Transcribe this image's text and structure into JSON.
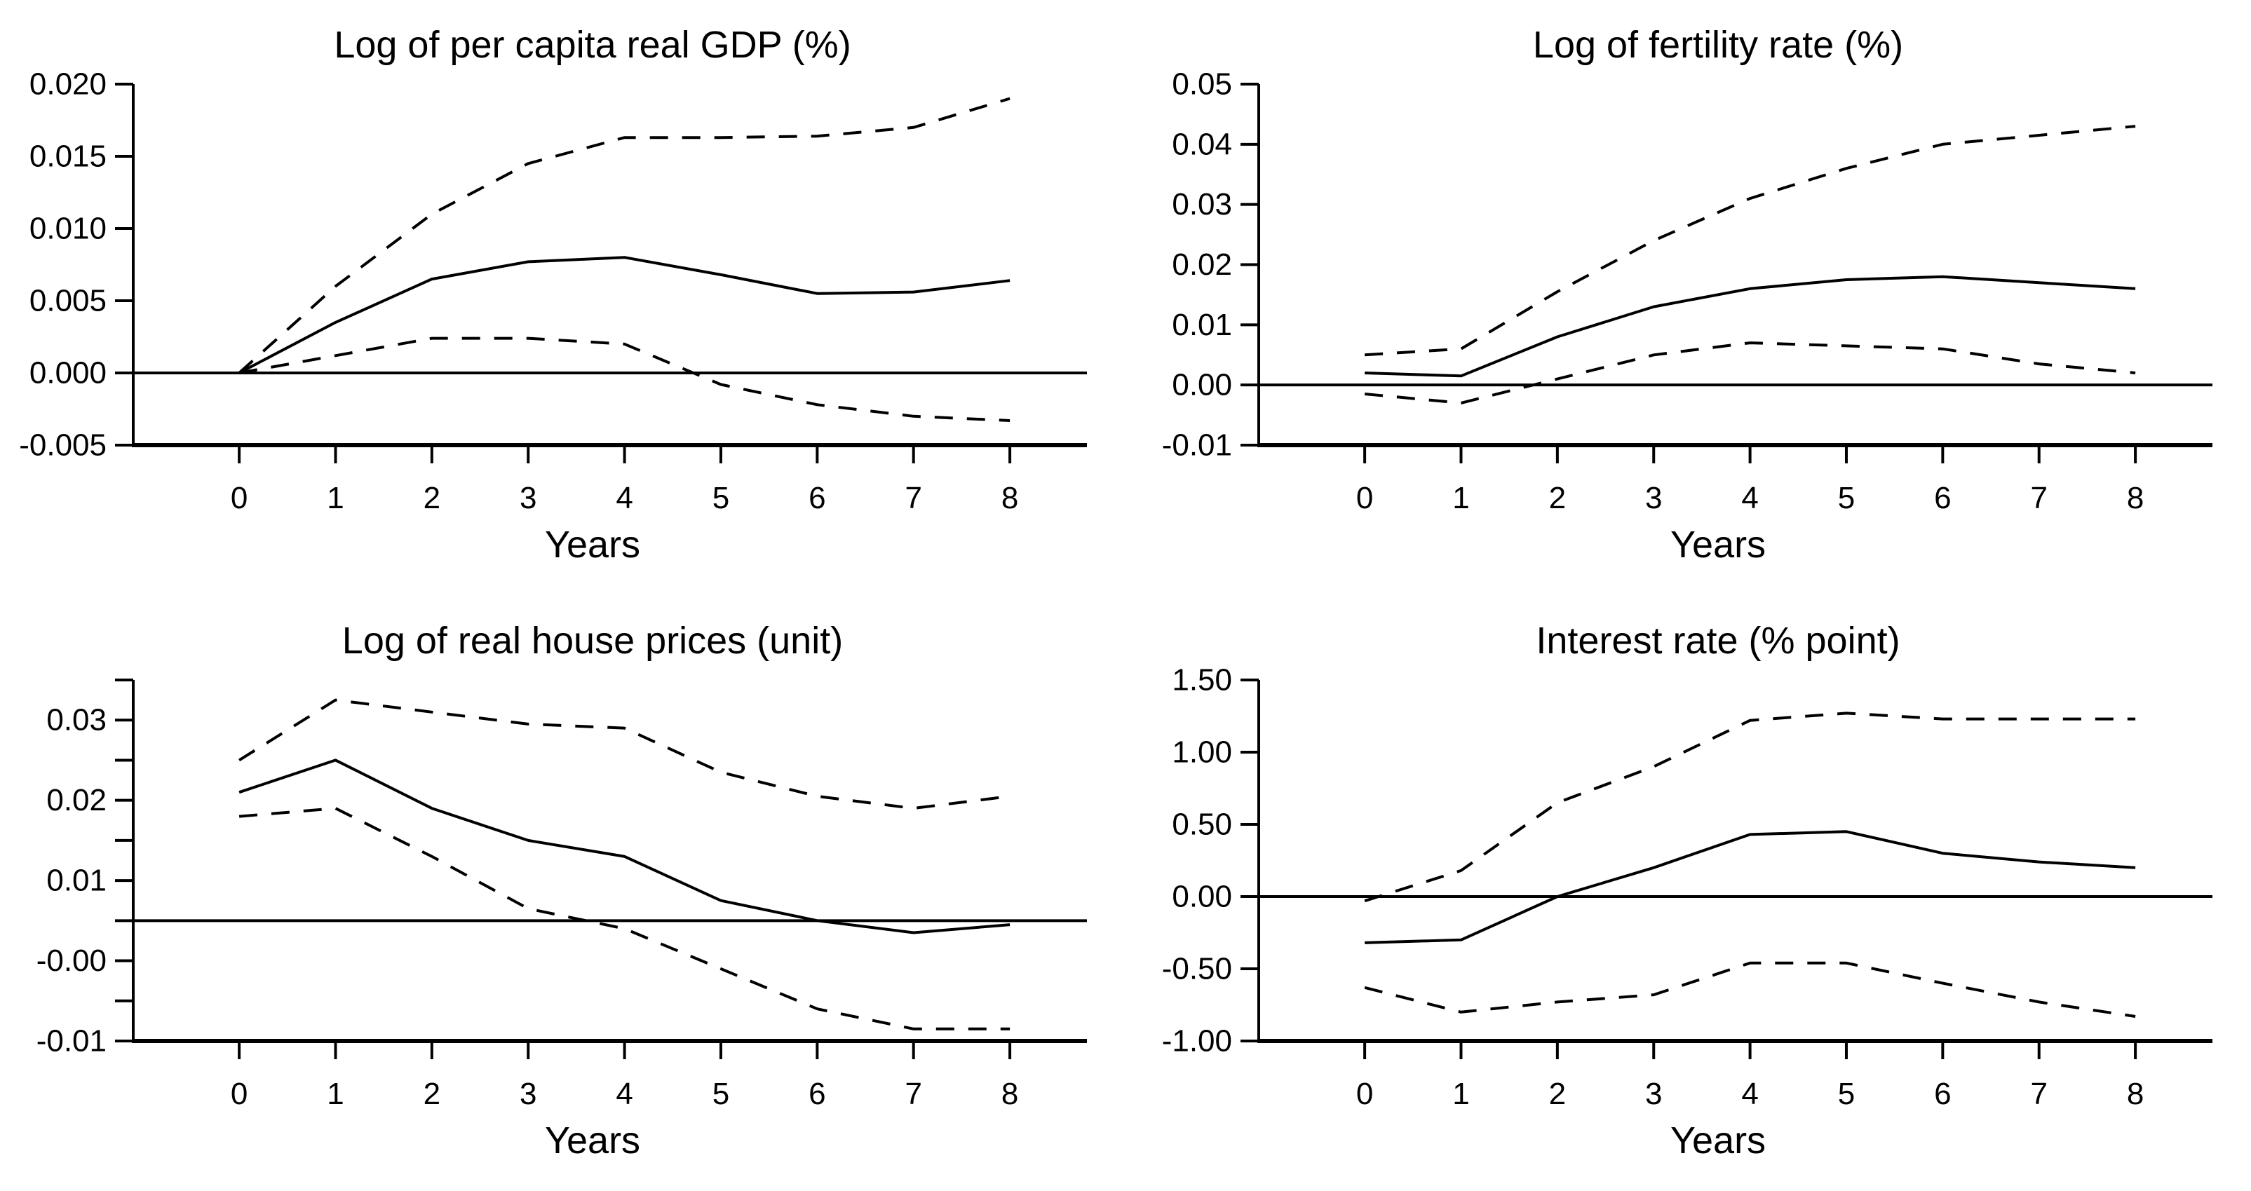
{
  "figure": {
    "layout": "2x2 grid of line charts",
    "background_color": "#ffffff",
    "ink_color": "#000000"
  },
  "chart_data": [
    {
      "id": "gdp",
      "type": "line",
      "title": "Log of per capita real GDP (%)",
      "xlabel": "Years",
      "x": [
        0,
        1,
        2,
        3,
        4,
        5,
        6,
        7,
        8
      ],
      "xtick_labels": [
        "0",
        "1",
        "2",
        "3",
        "4",
        "5",
        "6",
        "7",
        "8"
      ],
      "xlim": [
        -1.1,
        8.8
      ],
      "ylim": [
        -0.005,
        0.02
      ],
      "yticks": [
        {
          "value": 0.02,
          "label": "0.020"
        },
        {
          "value": 0.015,
          "label": "0.015"
        },
        {
          "value": 0.01,
          "label": "0.010"
        },
        {
          "value": 0.005,
          "label": "0.005"
        },
        {
          "value": 0.0,
          "label": "0.000"
        },
        {
          "value": -0.005,
          "label": "-0.005"
        }
      ],
      "yticks_minor": [],
      "reference_line_y": 0,
      "grid": false,
      "legend": "none",
      "series": [
        {
          "name": "point estimate",
          "style": "solid",
          "values": [
            0,
            0.0035,
            0.0065,
            0.0077,
            0.008,
            0.0068,
            0.0055,
            0.0056,
            0.0064
          ]
        },
        {
          "name": "upper band",
          "style": "dashed",
          "values": [
            0,
            0.006,
            0.011,
            0.0145,
            0.0163,
            0.0163,
            0.0164,
            0.017,
            0.019
          ]
        },
        {
          "name": "lower band",
          "style": "dashed",
          "values": [
            0,
            0.0012,
            0.0024,
            0.0024,
            0.002,
            -0.0008,
            -0.0022,
            -0.003,
            -0.0033
          ]
        }
      ]
    },
    {
      "id": "fertility",
      "type": "line",
      "title": "Log of fertility rate (%)",
      "xlabel": "Years",
      "x": [
        0,
        1,
        2,
        3,
        4,
        5,
        6,
        7,
        8
      ],
      "xtick_labels": [
        "0",
        "1",
        "2",
        "3",
        "4",
        "5",
        "6",
        "7",
        "8"
      ],
      "xlim": [
        -1.1,
        8.8
      ],
      "ylim": [
        -0.01,
        0.05
      ],
      "yticks": [
        {
          "value": 0.05,
          "label": "0.05"
        },
        {
          "value": 0.04,
          "label": "0.04"
        },
        {
          "value": 0.03,
          "label": "0.03"
        },
        {
          "value": 0.02,
          "label": "0.02"
        },
        {
          "value": 0.01,
          "label": "0.01"
        },
        {
          "value": 0.0,
          "label": "0.00"
        },
        {
          "value": -0.01,
          "label": "-0.01"
        }
      ],
      "yticks_minor": [],
      "reference_line_y": 0,
      "grid": false,
      "legend": "none",
      "series": [
        {
          "name": "point estimate",
          "style": "solid",
          "values": [
            0.002,
            0.0015,
            0.008,
            0.013,
            0.016,
            0.0175,
            0.018,
            0.017,
            0.016
          ]
        },
        {
          "name": "upper band",
          "style": "dashed",
          "values": [
            0.005,
            0.006,
            0.0155,
            0.024,
            0.031,
            0.036,
            0.04,
            0.0415,
            0.043
          ]
        },
        {
          "name": "lower band",
          "style": "dashed",
          "values": [
            -0.0015,
            -0.003,
            0.001,
            0.005,
            0.007,
            0.0065,
            0.006,
            0.0035,
            0.002
          ]
        }
      ]
    },
    {
      "id": "house-prices",
      "type": "line",
      "title": "Log of real house prices (unit)",
      "xlabel": "Years",
      "x": [
        0,
        1,
        2,
        3,
        4,
        5,
        6,
        7,
        8
      ],
      "xtick_labels": [
        "0",
        "1",
        "2",
        "3",
        "4",
        "5",
        "6",
        "7",
        "8"
      ],
      "xlim": [
        -1.1,
        8.8
      ],
      "ylim": [
        -0.01,
        0.035
      ],
      "yticks": [
        {
          "value": 0.03,
          "label": "0.03"
        },
        {
          "value": 0.02,
          "label": "0.02"
        },
        {
          "value": 0.01,
          "label": "0.01"
        },
        {
          "value": 0.0,
          "label": "-0.00"
        },
        {
          "value": -0.01,
          "label": "-0.01"
        }
      ],
      "yticks_minor": [
        0.035,
        0.025,
        0.015,
        0.005,
        -0.005
      ],
      "reference_line_y": 0.005,
      "grid": false,
      "legend": "none",
      "series": [
        {
          "name": "point estimate",
          "style": "solid",
          "values": [
            0.021,
            0.025,
            0.019,
            0.015,
            0.013,
            0.0075,
            0.005,
            0.0035,
            0.0045
          ]
        },
        {
          "name": "upper band",
          "style": "dashed",
          "values": [
            0.025,
            0.0325,
            0.031,
            0.0295,
            0.029,
            0.0235,
            0.0205,
            0.019,
            0.0205
          ]
        },
        {
          "name": "lower band",
          "style": "dashed",
          "values": [
            0.018,
            0.019,
            0.013,
            0.0065,
            0.004,
            -0.001,
            -0.006,
            -0.0085,
            -0.0085
          ]
        }
      ]
    },
    {
      "id": "interest-rate",
      "type": "line",
      "title": "Interest rate (% point)",
      "xlabel": "Years",
      "x": [
        0,
        1,
        2,
        3,
        4,
        5,
        6,
        7,
        8
      ],
      "xtick_labels": [
        "0",
        "1",
        "2",
        "3",
        "4",
        "5",
        "6",
        "7",
        "8"
      ],
      "xlim": [
        -1.1,
        8.8
      ],
      "ylim": [
        -1.0,
        1.5
      ],
      "yticks": [
        {
          "value": 1.5,
          "label": "1.50"
        },
        {
          "value": 1.0,
          "label": "1.00"
        },
        {
          "value": 0.5,
          "label": "0.50"
        },
        {
          "value": 0.0,
          "label": "0.00"
        },
        {
          "value": -0.5,
          "label": "-0.50"
        },
        {
          "value": -1.0,
          "label": "-1.00"
        }
      ],
      "yticks_minor": [],
      "reference_line_y": 0,
      "grid": false,
      "legend": "none",
      "series": [
        {
          "name": "point estimate",
          "style": "solid",
          "values": [
            -0.32,
            -0.3,
            0.0,
            0.2,
            0.43,
            0.45,
            0.3,
            0.24,
            0.2
          ]
        },
        {
          "name": "upper band",
          "style": "dashed",
          "values": [
            -0.03,
            0.18,
            0.65,
            0.9,
            1.22,
            1.27,
            1.23,
            1.23,
            1.23
          ]
        },
        {
          "name": "lower band",
          "style": "dashed",
          "values": [
            -0.63,
            -0.8,
            -0.73,
            -0.68,
            -0.46,
            -0.46,
            -0.6,
            -0.73,
            -0.83
          ]
        }
      ]
    }
  ]
}
